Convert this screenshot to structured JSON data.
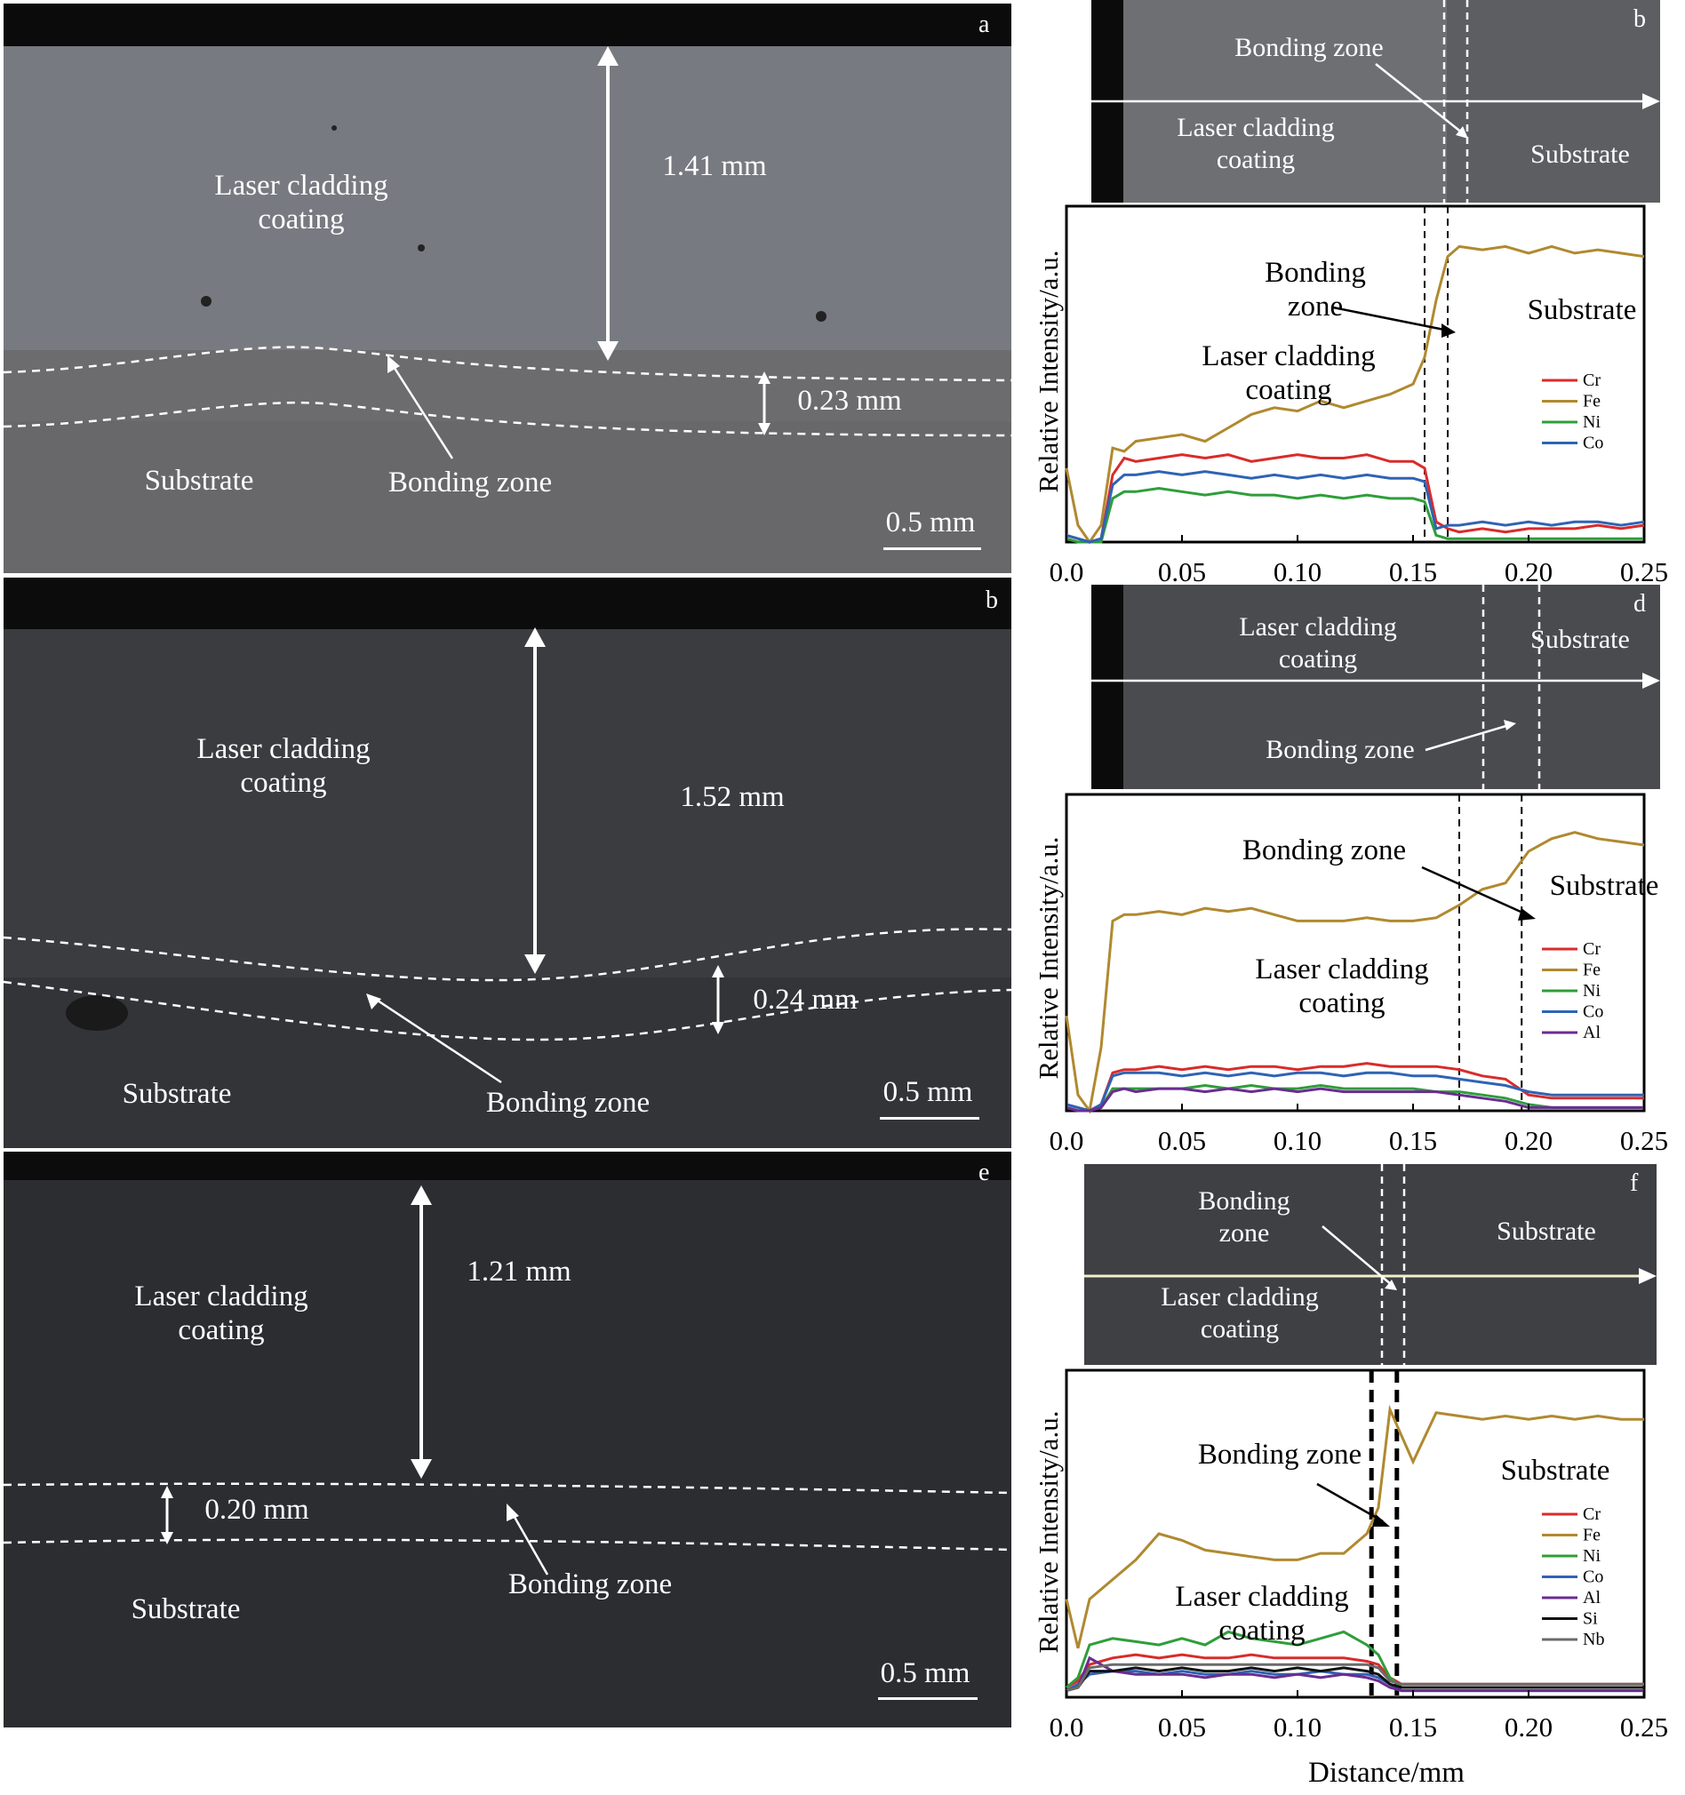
{
  "micrographs": {
    "a": {
      "letter": "a",
      "coating": "Laser cladding\ncoating",
      "thickness": "1.41 mm",
      "bond_thickness": "0.23 mm",
      "substrate": "Substrate",
      "bonding": "Bonding zone",
      "scale": "0.5 mm"
    },
    "b": {
      "letter": "b",
      "coating": "Laser cladding\ncoating",
      "thickness": "1.52 mm",
      "bond_thickness": "0.24 mm",
      "substrate": "Substrate",
      "bonding": "Bonding zone",
      "scale": "0.5 mm"
    },
    "e": {
      "letter": "e",
      "coating": "Laser cladding\ncoating",
      "thickness": "1.21 mm",
      "bond_thickness": "0.20 mm",
      "substrate": "Substrate",
      "bonding": "Bonding zone",
      "scale": "0.5 mm"
    }
  },
  "linescan_images": {
    "b": {
      "letter": "b",
      "bonding": "Bonding zone",
      "coating": "Laser cladding\ncoating",
      "substrate": "Substrate"
    },
    "d": {
      "letter": "d",
      "coating": "Laser cladding\ncoating",
      "substrate": "Substrate",
      "bonding": "Bonding zone"
    },
    "f": {
      "letter": "f",
      "bonding": "Bonding\nzone",
      "substrate": "Substrate",
      "coating": "Laser cladding\ncoating"
    }
  },
  "plot_labels": {
    "ylabel": "Relative Intensity/a.u.",
    "xlabel": "Distance/mm",
    "p1": {
      "bonding": "Bonding\nzone",
      "coating": "Laser cladding\ncoating",
      "substrate": "Substrate"
    },
    "p2": {
      "bonding": "Bonding zone",
      "coating": "Laser cladding\ncoating",
      "substrate": "Substrate"
    },
    "p3": {
      "bonding": "Bonding zone",
      "coating": "Laser cladding\ncoating",
      "substrate": "Substrate"
    }
  },
  "colors": {
    "Cr": "#d92b2b",
    "Fe": "#b08930",
    "Ni": "#2f9e3a",
    "Co": "#2f63b5",
    "Al": "#6a2c91",
    "Si": "#111111",
    "Nb": "#6b6b6b"
  },
  "chart_data": [
    {
      "type": "line",
      "title": "",
      "xlabel": "",
      "ylabel": "Relative Intensity/a.u.",
      "xlim": [
        0,
        0.25
      ],
      "ylim": [
        0,
        1
      ],
      "xticks": [
        "0.0",
        "0.05",
        "0.10",
        "0.15",
        "0.20",
        "0.25"
      ],
      "dashed_lines_x": [
        0.155,
        0.165
      ],
      "x": [
        0,
        0.005,
        0.01,
        0.015,
        0.02,
        0.025,
        0.03,
        0.04,
        0.05,
        0.06,
        0.07,
        0.08,
        0.09,
        0.1,
        0.11,
        0.12,
        0.13,
        0.14,
        0.15,
        0.155,
        0.16,
        0.165,
        0.17,
        0.18,
        0.19,
        0.2,
        0.21,
        0.22,
        0.23,
        0.24,
        0.25
      ],
      "series": [
        {
          "name": "Cr",
          "values": [
            0.02,
            0.01,
            0.0,
            0.01,
            0.2,
            0.25,
            0.24,
            0.25,
            0.26,
            0.25,
            0.26,
            0.24,
            0.25,
            0.26,
            0.25,
            0.25,
            0.26,
            0.24,
            0.24,
            0.22,
            0.06,
            0.04,
            0.03,
            0.04,
            0.03,
            0.04,
            0.04,
            0.04,
            0.05,
            0.04,
            0.05
          ]
        },
        {
          "name": "Fe",
          "values": [
            0.22,
            0.05,
            0.0,
            0.05,
            0.28,
            0.27,
            0.3,
            0.31,
            0.32,
            0.3,
            0.34,
            0.38,
            0.4,
            0.39,
            0.42,
            0.4,
            0.42,
            0.44,
            0.47,
            0.55,
            0.72,
            0.85,
            0.88,
            0.87,
            0.88,
            0.86,
            0.88,
            0.86,
            0.87,
            0.86,
            0.85
          ]
        },
        {
          "name": "Ni",
          "values": [
            0.01,
            0.0,
            0.0,
            0.0,
            0.13,
            0.15,
            0.15,
            0.16,
            0.15,
            0.14,
            0.15,
            0.14,
            0.14,
            0.13,
            0.14,
            0.13,
            0.14,
            0.13,
            0.13,
            0.12,
            0.02,
            0.01,
            0.01,
            0.01,
            0.01,
            0.01,
            0.01,
            0.01,
            0.01,
            0.01,
            0.01
          ]
        },
        {
          "name": "Co",
          "values": [
            0.02,
            0.01,
            0.0,
            0.01,
            0.17,
            0.2,
            0.2,
            0.21,
            0.2,
            0.21,
            0.2,
            0.19,
            0.2,
            0.19,
            0.2,
            0.19,
            0.2,
            0.19,
            0.19,
            0.18,
            0.04,
            0.05,
            0.05,
            0.06,
            0.05,
            0.06,
            0.05,
            0.06,
            0.06,
            0.05,
            0.06
          ]
        }
      ]
    },
    {
      "type": "line",
      "title": "",
      "xlabel": "",
      "ylabel": "Relative Intensity/a.u.",
      "xlim": [
        0,
        0.25
      ],
      "ylim": [
        0,
        1
      ],
      "xticks": [
        "0.0",
        "0.05",
        "0.10",
        "0.15",
        "0.20",
        "0.25"
      ],
      "dashed_lines_x": [
        0.17,
        0.197
      ],
      "x": [
        0,
        0.005,
        0.01,
        0.015,
        0.02,
        0.025,
        0.03,
        0.04,
        0.05,
        0.06,
        0.07,
        0.08,
        0.09,
        0.1,
        0.11,
        0.12,
        0.13,
        0.14,
        0.15,
        0.16,
        0.17,
        0.18,
        0.19,
        0.2,
        0.21,
        0.22,
        0.23,
        0.24,
        0.25
      ],
      "series": [
        {
          "name": "Cr",
          "values": [
            0.02,
            0.01,
            0.0,
            0.02,
            0.12,
            0.13,
            0.13,
            0.14,
            0.13,
            0.14,
            0.13,
            0.14,
            0.14,
            0.13,
            0.14,
            0.14,
            0.15,
            0.14,
            0.14,
            0.14,
            0.13,
            0.11,
            0.1,
            0.05,
            0.04,
            0.04,
            0.04,
            0.04,
            0.04
          ]
        },
        {
          "name": "Fe",
          "values": [
            0.3,
            0.05,
            0.0,
            0.2,
            0.6,
            0.62,
            0.62,
            0.63,
            0.62,
            0.64,
            0.63,
            0.64,
            0.62,
            0.6,
            0.6,
            0.6,
            0.61,
            0.6,
            0.6,
            0.61,
            0.65,
            0.7,
            0.72,
            0.82,
            0.86,
            0.88,
            0.86,
            0.85,
            0.84
          ]
        },
        {
          "name": "Ni",
          "values": [
            0.01,
            0.0,
            0.0,
            0.01,
            0.07,
            0.07,
            0.07,
            0.07,
            0.07,
            0.08,
            0.07,
            0.08,
            0.07,
            0.07,
            0.08,
            0.07,
            0.07,
            0.07,
            0.07,
            0.06,
            0.06,
            0.05,
            0.04,
            0.02,
            0.01,
            0.01,
            0.01,
            0.01,
            0.01
          ]
        },
        {
          "name": "Co",
          "values": [
            0.02,
            0.01,
            0.0,
            0.02,
            0.11,
            0.12,
            0.12,
            0.12,
            0.11,
            0.12,
            0.11,
            0.12,
            0.11,
            0.12,
            0.12,
            0.11,
            0.12,
            0.12,
            0.11,
            0.11,
            0.1,
            0.09,
            0.08,
            0.06,
            0.05,
            0.05,
            0.05,
            0.05,
            0.05
          ]
        },
        {
          "name": "Al",
          "values": [
            0.01,
            0.0,
            0.0,
            0.01,
            0.06,
            0.07,
            0.06,
            0.07,
            0.07,
            0.06,
            0.07,
            0.06,
            0.07,
            0.06,
            0.07,
            0.06,
            0.06,
            0.06,
            0.06,
            0.06,
            0.05,
            0.04,
            0.03,
            0.01,
            0.01,
            0.01,
            0.01,
            0.01,
            0.01
          ]
        }
      ]
    },
    {
      "type": "line",
      "title": "",
      "xlabel": "Distance/mm",
      "ylabel": "Relative Intensity/a.u.",
      "xlim": [
        0,
        0.25
      ],
      "ylim": [
        0,
        1
      ],
      "xticks": [
        "0.0",
        "0.05",
        "0.10",
        "0.15",
        "0.20",
        "0.25"
      ],
      "dashed_lines_x": [
        0.132,
        0.143
      ],
      "x": [
        0,
        0.005,
        0.01,
        0.02,
        0.03,
        0.04,
        0.05,
        0.06,
        0.07,
        0.08,
        0.09,
        0.1,
        0.11,
        0.12,
        0.13,
        0.135,
        0.14,
        0.145,
        0.15,
        0.16,
        0.17,
        0.18,
        0.19,
        0.2,
        0.21,
        0.22,
        0.23,
        0.24,
        0.25
      ],
      "series": [
        {
          "name": "Cr",
          "values": [
            0.03,
            0.05,
            0.1,
            0.12,
            0.13,
            0.12,
            0.13,
            0.12,
            0.12,
            0.13,
            0.12,
            0.12,
            0.12,
            0.12,
            0.11,
            0.1,
            0.06,
            0.04,
            0.04,
            0.04,
            0.04,
            0.04,
            0.04,
            0.04,
            0.04,
            0.04,
            0.04,
            0.04,
            0.04
          ]
        },
        {
          "name": "Fe",
          "values": [
            0.3,
            0.15,
            0.3,
            0.36,
            0.42,
            0.5,
            0.48,
            0.45,
            0.44,
            0.43,
            0.42,
            0.42,
            0.44,
            0.44,
            0.5,
            0.58,
            0.88,
            0.8,
            0.72,
            0.87,
            0.86,
            0.85,
            0.86,
            0.85,
            0.86,
            0.85,
            0.86,
            0.85,
            0.85
          ]
        },
        {
          "name": "Ni",
          "values": [
            0.03,
            0.06,
            0.16,
            0.18,
            0.17,
            0.16,
            0.18,
            0.16,
            0.2,
            0.18,
            0.17,
            0.16,
            0.18,
            0.2,
            0.16,
            0.13,
            0.06,
            0.03,
            0.03,
            0.03,
            0.03,
            0.03,
            0.03,
            0.03,
            0.03,
            0.03,
            0.03,
            0.03,
            0.03
          ]
        },
        {
          "name": "Co",
          "values": [
            0.02,
            0.04,
            0.07,
            0.08,
            0.08,
            0.07,
            0.08,
            0.07,
            0.07,
            0.08,
            0.07,
            0.07,
            0.08,
            0.07,
            0.07,
            0.06,
            0.04,
            0.02,
            0.02,
            0.02,
            0.02,
            0.02,
            0.02,
            0.02,
            0.02,
            0.02,
            0.02,
            0.02,
            0.02
          ]
        },
        {
          "name": "Al",
          "values": [
            0.02,
            0.03,
            0.12,
            0.08,
            0.07,
            0.07,
            0.07,
            0.06,
            0.07,
            0.07,
            0.06,
            0.07,
            0.06,
            0.07,
            0.06,
            0.05,
            0.03,
            0.02,
            0.02,
            0.02,
            0.02,
            0.02,
            0.02,
            0.02,
            0.02,
            0.02,
            0.02,
            0.02,
            0.02
          ]
        },
        {
          "name": "Si",
          "values": [
            0.02,
            0.03,
            0.08,
            0.08,
            0.09,
            0.08,
            0.09,
            0.08,
            0.08,
            0.09,
            0.08,
            0.09,
            0.08,
            0.09,
            0.08,
            0.07,
            0.04,
            0.03,
            0.03,
            0.03,
            0.03,
            0.03,
            0.03,
            0.03,
            0.03,
            0.03,
            0.03,
            0.03,
            0.03
          ]
        },
        {
          "name": "Nb",
          "values": [
            0.02,
            0.03,
            0.09,
            0.1,
            0.1,
            0.1,
            0.1,
            0.1,
            0.1,
            0.1,
            0.1,
            0.1,
            0.1,
            0.1,
            0.1,
            0.09,
            0.05,
            0.04,
            0.04,
            0.04,
            0.04,
            0.04,
            0.04,
            0.04,
            0.04,
            0.04,
            0.04,
            0.04,
            0.04
          ]
        }
      ]
    }
  ]
}
